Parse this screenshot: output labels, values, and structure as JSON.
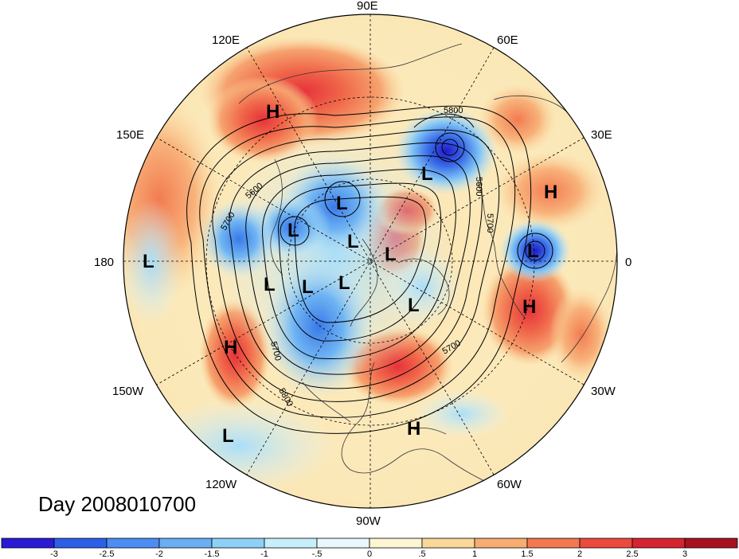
{
  "title": "Day 2008010700",
  "longitude_labels": {
    "lon_90E": "90E",
    "lon_60E": "60E",
    "lon_30E": "30E",
    "lon_0": "0",
    "lon_30W": "30W",
    "lon_60W": "60W",
    "lon_90W": "90W",
    "lon_120W": "120W",
    "lon_150W": "150W",
    "lon_180": "180",
    "lon_150E": "150E",
    "lon_120E": "120E"
  },
  "pressure_centers": [
    {
      "type": "H",
      "id": "high-siberia"
    },
    {
      "type": "L",
      "id": "low-scandinavia"
    },
    {
      "type": "L",
      "id": "low-barents-east"
    },
    {
      "type": "H",
      "id": "high-mediterranean"
    },
    {
      "type": "L",
      "id": "low-europe"
    },
    {
      "type": "H",
      "id": "high-subtropical-atlantic"
    },
    {
      "type": "L",
      "id": "low-kara"
    },
    {
      "type": "L",
      "id": "low-east-siberia"
    },
    {
      "type": "L",
      "id": "low-arctic-1"
    },
    {
      "type": "L",
      "id": "low-arctic-2"
    },
    {
      "type": "L",
      "id": "low-canada-1"
    },
    {
      "type": "L",
      "id": "low-canada-2"
    },
    {
      "type": "L",
      "id": "low-pacific-north"
    },
    {
      "type": "L",
      "id": "low-greenland"
    },
    {
      "type": "L",
      "id": "low-dateline"
    },
    {
      "type": "H",
      "id": "high-northeast-pacific"
    },
    {
      "type": "L",
      "id": "low-subtropical-pacific"
    },
    {
      "type": "H",
      "id": "high-caribbean"
    }
  ],
  "contour_labels": [
    "5800",
    "5600",
    "5700",
    "5600",
    "5700",
    "5800",
    "5700",
    "5700"
  ],
  "colorbar": {
    "ticks": [
      "-3",
      "-2.5",
      "-2",
      "-1.5",
      "-1",
      "-.5",
      "0",
      ".5",
      "1",
      "1.5",
      "2",
      "2.5",
      "3"
    ],
    "colors": [
      "#2a1bd6",
      "#2f5fe8",
      "#4d8df2",
      "#6aaef4",
      "#8fd0f7",
      "#c7eefb",
      "#e8f8fc",
      "#fdf6d3",
      "#fad89a",
      "#f7ad72",
      "#f27950",
      "#ec4a3d",
      "#d52430",
      "#a8121f"
    ]
  },
  "chart_data": {
    "type": "map",
    "projection": "north-polar-stereographic",
    "field_colorbar_range": [
      -3,
      3
    ],
    "contour_interval_labels": [
      5600,
      5700,
      5800
    ]
  }
}
